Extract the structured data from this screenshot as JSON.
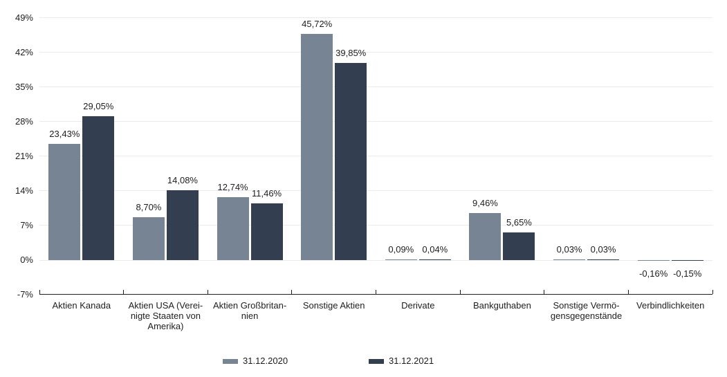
{
  "chart_data": {
    "type": "bar",
    "title": "",
    "xlabel": "",
    "ylabel": "",
    "categories": [
      "Aktien Kanada",
      "Aktien USA (Vereinigte Staaten von Amerika)",
      "Aktien Großbritannien",
      "Sonstige Aktien",
      "Derivate",
      "Bankguthaben",
      "Sonstige Vermögensgegenstände",
      "Verbindlichkeiten"
    ],
    "category_display": [
      "Aktien Kanada",
      "Aktien USA (Verei-\nnigte Staaten von\nAmerika)",
      "Aktien Großbritan-\nnien",
      "Sonstige Aktien",
      "Derivate",
      "Bankguthaben",
      "Sonstige Vermö-\ngensgegenstände",
      "Verbindlichkeiten"
    ],
    "series": [
      {
        "name": "31.12.2020",
        "color": "#778494",
        "values": [
          23.43,
          8.7,
          12.74,
          45.72,
          0.09,
          9.46,
          0.03,
          -0.16
        ],
        "data_labels": [
          "23,43%",
          "8,70%",
          "12,74%",
          "45,72%",
          "0,09%",
          "9,46%",
          "0,03%",
          "-0,16%"
        ]
      },
      {
        "name": "31.12.2021",
        "color": "#333F50",
        "values": [
          29.05,
          14.08,
          11.46,
          39.85,
          0.04,
          5.65,
          0.03,
          -0.15
        ],
        "data_labels": [
          "29,05%",
          "14,08%",
          "11,46%",
          "39,85%",
          "0,04%",
          "5,65%",
          "0,03%",
          "-0,15%"
        ]
      }
    ],
    "y_axis": {
      "min": -7,
      "max": 49,
      "ticks": [
        49,
        42,
        35,
        28,
        21,
        14,
        7,
        0,
        -7
      ],
      "tick_labels": [
        "49%",
        "42%",
        "35%",
        "28%",
        "21%",
        "14%",
        "7%",
        "0%",
        "-7%"
      ]
    },
    "grid": true,
    "legend": {
      "position": "bottom",
      "entries": [
        "31.12.2020",
        "31.12.2021"
      ]
    },
    "colors": {
      "grid": "#e9ebed",
      "axis": "#1d1d1b",
      "text": "#1d1d1b",
      "background": "#ffffff"
    }
  }
}
